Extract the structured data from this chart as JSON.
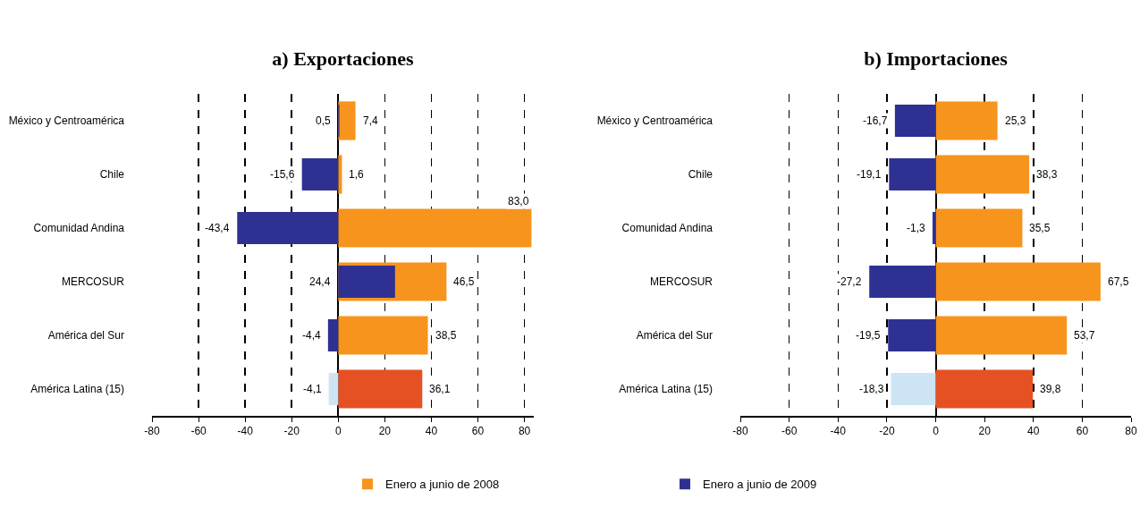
{
  "chart_data": [
    {
      "type": "bar",
      "title": "a) Exportaciones",
      "orientation": "horizontal",
      "categories": [
        "México y Centroamérica",
        "Chile",
        "Comunidad Andina",
        "MERCOSUR",
        "América del Sur",
        "América Latina (15)"
      ],
      "series": [
        {
          "name": "Enero a junio de 2008",
          "color": "#f7941d",
          "colors": [
            null,
            null,
            null,
            null,
            null,
            "#e65124"
          ],
          "values": [
            7.4,
            1.6,
            83.0,
            46.5,
            38.5,
            36.1
          ],
          "value_labels": [
            "7,4",
            "1,6",
            "83,0",
            "46,5",
            "38,5",
            "36,1"
          ]
        },
        {
          "name": "Enero a junio de 2009",
          "color": "#2e3192",
          "colors": [
            null,
            null,
            null,
            null,
            null,
            "#cde4f4"
          ],
          "values": [
            0.5,
            -15.6,
            -43.4,
            24.4,
            -4.4,
            -4.1
          ],
          "value_labels": [
            "0,5",
            "-15,6",
            "-43,4",
            "24,4",
            "-4,4",
            "-4,1"
          ]
        }
      ],
      "xlim": [
        -80,
        84
      ],
      "xticks": [
        -80,
        -60,
        -40,
        -20,
        0,
        20,
        40,
        60,
        80
      ],
      "grid": "x",
      "legend": "bottom"
    },
    {
      "type": "bar",
      "title": "b) Importaciones",
      "orientation": "horizontal",
      "categories": [
        "México y Centroamérica",
        "Chile",
        "Comunidad Andina",
        "MERCOSUR",
        "América del Sur",
        "América Latina (15)"
      ],
      "series": [
        {
          "color": "#f7941d",
          "colors": [
            null,
            null,
            null,
            null,
            null,
            "#e65124"
          ],
          "values": [
            25.3,
            38.3,
            35.5,
            67.5,
            53.7,
            39.8
          ],
          "value_labels": [
            "25,3",
            "38,3",
            "35,5",
            "67,5",
            "53,7",
            "39,8"
          ]
        },
        {
          "color": "#2e3192",
          "colors": [
            null,
            null,
            null,
            null,
            null,
            "#cde4f4"
          ],
          "values": [
            -16.7,
            -19.1,
            -1.3,
            -27.2,
            -19.5,
            -18.3
          ],
          "value_labels": [
            "-16,7",
            "-19,1",
            "-1,3",
            "-27,2",
            "-19,5",
            "-18,3"
          ]
        }
      ],
      "xlim": [
        -80,
        80
      ],
      "xticks": [
        -80,
        -60,
        -40,
        -20,
        0,
        20,
        40,
        60,
        80
      ],
      "grid": "x",
      "legend": false
    }
  ]
}
